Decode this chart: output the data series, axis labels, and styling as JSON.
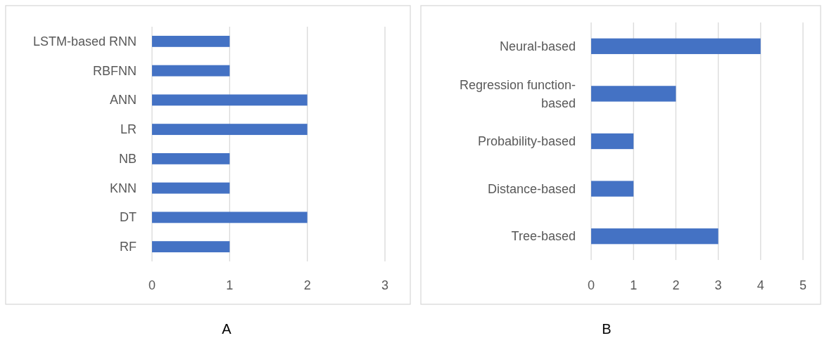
{
  "chart_data": [
    {
      "type": "bar",
      "orientation": "horizontal",
      "title": "A",
      "categories": [
        "LSTM-based RNN",
        "RBFNN",
        "ANN",
        "LR",
        "NB",
        "KNN",
        "DT",
        "RF"
      ],
      "values": [
        1,
        1,
        2,
        2,
        1,
        1,
        2,
        1
      ],
      "color": "#4472c4",
      "xlim": [
        0,
        3
      ],
      "xticks": [
        0,
        1,
        2,
        3
      ],
      "grid": "x"
    },
    {
      "type": "bar",
      "orientation": "horizontal",
      "title": "B",
      "categories": [
        "Neural-based",
        "Regression function-based",
        "Probability-based",
        "Distance-based",
        "Tree-based"
      ],
      "values": [
        4,
        2,
        1,
        1,
        3
      ],
      "color": "#4472c4",
      "xlim": [
        0,
        5
      ],
      "xticks": [
        0,
        1,
        2,
        3,
        4,
        5
      ],
      "grid": "x"
    }
  ]
}
